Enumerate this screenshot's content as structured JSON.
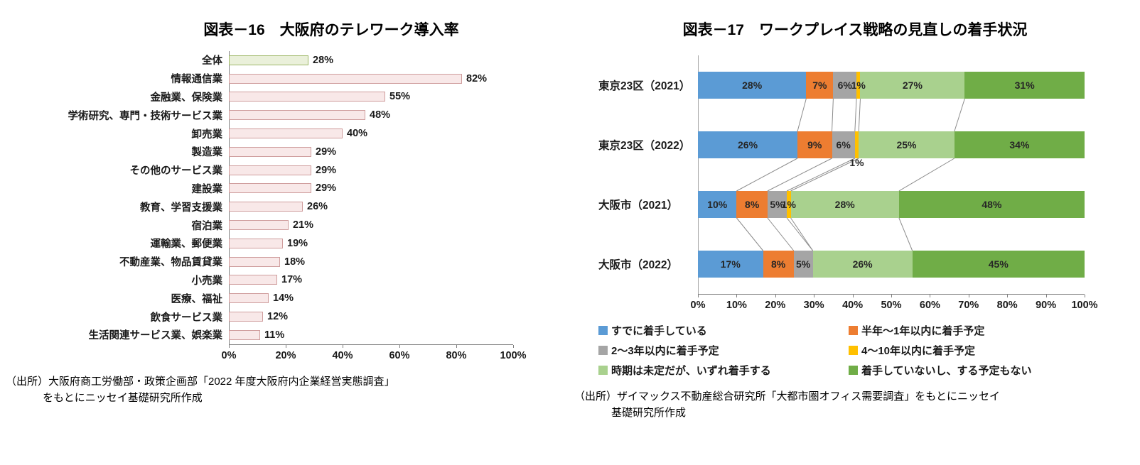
{
  "chart_data": [
    {
      "id": "figure16",
      "type": "bar",
      "orientation": "horizontal",
      "title": "図表－16　大阪府のテレワーク導入率",
      "categories": [
        "全体",
        "情報通信業",
        "金融業、保険業",
        "学術研究、専門・技術サービス業",
        "卸売業",
        "製造業",
        "その他のサービス業",
        "建設業",
        "教育、学習支援業",
        "宿泊業",
        "運輸業、郵便業",
        "不動産業、物品賃貸業",
        "小売業",
        "医療、福祉",
        "飲食サービス業",
        "生活関連サービス業、娯楽業"
      ],
      "values": [
        28,
        82,
        55,
        48,
        40,
        29,
        29,
        29,
        26,
        21,
        19,
        18,
        17,
        14,
        12,
        11
      ],
      "unit": "%",
      "xlim": [
        0,
        100
      ],
      "x_ticks": [
        "0%",
        "20%",
        "40%",
        "60%",
        "80%",
        "100%"
      ],
      "grid": false,
      "highlight_index": 0,
      "colors": {
        "bar_fill": "#f8e8e8",
        "bar_border": "#cf9d9d",
        "highlight_fill": "#eaf0da",
        "highlight_border": "#9fb868"
      },
      "source_line1": "（出所）大阪府商工労働部・政策企画部「2022 年度大阪府内企業経営実態調査」",
      "source_line2": "をもとにニッセイ基礎研究所作成"
    },
    {
      "id": "figure17",
      "type": "bar",
      "stacked": true,
      "orientation": "horizontal",
      "title": "図表－17　ワークプレイス戦略の見直しの着手状況",
      "categories": [
        "東京23区（2021）",
        "東京23区（2022）",
        "大阪市（2021）",
        "大阪市（2022）"
      ],
      "series": [
        {
          "name": "すでに着手している",
          "color": "#5b9bd5",
          "values": [
            28,
            26,
            10,
            17
          ]
        },
        {
          "name": "半年～1年以内に着手予定",
          "color": "#ed7d31",
          "values": [
            7,
            9,
            8,
            8
          ]
        },
        {
          "name": "2～3年以内に着手予定",
          "color": "#a5a5a5",
          "values": [
            6,
            6,
            5,
            5
          ]
        },
        {
          "name": "4～10年以内に着手予定",
          "color": "#ffc000",
          "values": [
            1,
            1,
            1,
            0
          ]
        },
        {
          "name": "時期は未定だが、いずれ着手する",
          "color": "#a9d18e",
          "values": [
            27,
            25,
            28,
            26
          ]
        },
        {
          "name": "着手していないし、する予定もない",
          "color": "#70ad47",
          "values": [
            31,
            34,
            48,
            45
          ]
        }
      ],
      "unit": "%",
      "xlim": [
        0,
        100
      ],
      "x_ticks": [
        "0%",
        "10%",
        "20%",
        "30%",
        "40%",
        "50%",
        "60%",
        "70%",
        "80%",
        "90%",
        "100%"
      ],
      "grid": false,
      "legend_position": "bottom",
      "series_lines": true,
      "label_callouts": [
        {
          "row": 1,
          "series": 3,
          "placement": "below"
        }
      ],
      "source_line1": "（出所）ザイマックス不動産総合研究所「大都市圏オフィス需要調査」をもとにニッセイ",
      "source_line2": "基礎研究所作成"
    }
  ]
}
